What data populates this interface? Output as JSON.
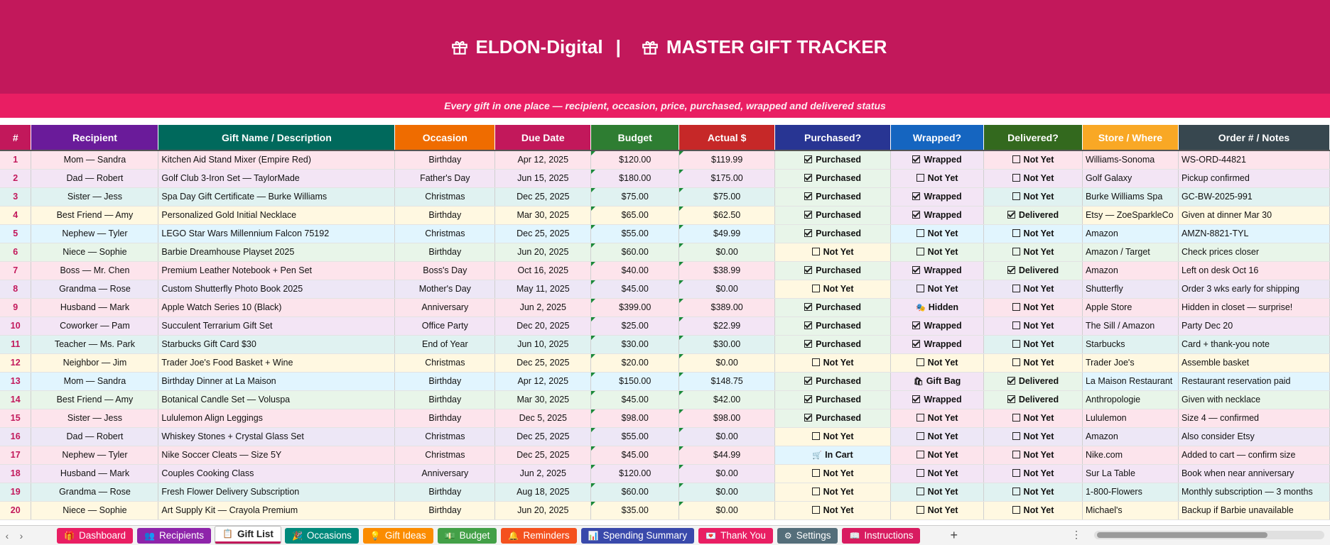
{
  "banner": {
    "brand": "ELDON-Digital",
    "sep": "|",
    "title": "MASTER GIFT TRACKER"
  },
  "subtitle": "Every gift in one place — recipient, occasion, price, purchased, wrapped and delivered status",
  "headers": [
    "#",
    "Recipient",
    "Gift Name / Description",
    "Occasion",
    "Due Date",
    "Budget",
    "Actual $",
    "Purchased?",
    "Wrapped?",
    "Delivered?",
    "Store / Where",
    "Order # / Notes"
  ],
  "header_colors": [
    "#c2185b",
    "#6a1b9a",
    "#00695c",
    "#ef6c00",
    "#c2185b",
    "#2e7d32",
    "#c62828",
    "#283593",
    "#1565c0",
    "#33691e",
    "#f9a825",
    "#37474f"
  ],
  "rows": [
    [
      "1",
      "Mom — Sandra",
      "Kitchen Aid Stand Mixer (Empire Red)",
      "Birthday",
      "Apr 12, 2025",
      "$120.00",
      "$119.99",
      "Purchased",
      "Wrapped",
      "Not Yet",
      "Williams-Sonoma",
      "WS-ORD-44821"
    ],
    [
      "2",
      "Dad — Robert",
      "Golf Club 3-Iron Set — TaylorMade",
      "Father's Day",
      "Jun 15, 2025",
      "$180.00",
      "$175.00",
      "Purchased",
      "Not Yet",
      "Not Yet",
      "Golf Galaxy",
      "Pickup confirmed"
    ],
    [
      "3",
      "Sister — Jess",
      "Spa Day Gift Certificate — Burke Williams",
      "Christmas",
      "Dec 25, 2025",
      "$75.00",
      "$75.00",
      "Purchased",
      "Wrapped",
      "Not Yet",
      "Burke Williams Spa",
      "GC-BW-2025-991"
    ],
    [
      "4",
      "Best Friend — Amy",
      "Personalized Gold Initial Necklace",
      "Birthday",
      "Mar 30, 2025",
      "$65.00",
      "$62.50",
      "Purchased",
      "Wrapped",
      "Delivered",
      "Etsy — ZoeSparkleCo",
      "Given at dinner Mar 30"
    ],
    [
      "5",
      "Nephew — Tyler",
      "LEGO Star Wars Millennium Falcon 75192",
      "Christmas",
      "Dec 25, 2025",
      "$55.00",
      "$49.99",
      "Purchased",
      "Not Yet",
      "Not Yet",
      "Amazon",
      "AMZN-8821-TYL"
    ],
    [
      "6",
      "Niece — Sophie",
      "Barbie Dreamhouse Playset 2025",
      "Birthday",
      "Jun 20, 2025",
      "$60.00",
      "$0.00",
      "Not Yet",
      "Not Yet",
      "Not Yet",
      "Amazon / Target",
      "Check prices closer"
    ],
    [
      "7",
      "Boss — Mr. Chen",
      "Premium Leather Notebook + Pen Set",
      "Boss's Day",
      "Oct 16, 2025",
      "$40.00",
      "$38.99",
      "Purchased",
      "Wrapped",
      "Delivered",
      "Amazon",
      "Left on desk Oct 16"
    ],
    [
      "8",
      "Grandma — Rose",
      "Custom Shutterfly Photo Book 2025",
      "Mother's Day",
      "May 11, 2025",
      "$45.00",
      "$0.00",
      "Not Yet",
      "Not Yet",
      "Not Yet",
      "Shutterfly",
      "Order 3 wks early for shipping"
    ],
    [
      "9",
      "Husband — Mark",
      "Apple Watch Series 10 (Black)",
      "Anniversary",
      "Jun 2, 2025",
      "$399.00",
      "$389.00",
      "Purchased",
      "Hidden",
      "Not Yet",
      "Apple Store",
      "Hidden in closet — surprise!"
    ],
    [
      "10",
      "Coworker — Pam",
      "Succulent Terrarium Gift Set",
      "Office Party",
      "Dec 20, 2025",
      "$25.00",
      "$22.99",
      "Purchased",
      "Wrapped",
      "Not Yet",
      "The Sill / Amazon",
      "Party Dec 20"
    ],
    [
      "11",
      "Teacher — Ms. Park",
      "Starbucks Gift Card $30",
      "End of Year",
      "Jun 10, 2025",
      "$30.00",
      "$30.00",
      "Purchased",
      "Wrapped",
      "Not Yet",
      "Starbucks",
      "Card + thank-you note"
    ],
    [
      "12",
      "Neighbor — Jim",
      "Trader Joe's Food Basket + Wine",
      "Christmas",
      "Dec 25, 2025",
      "$20.00",
      "$0.00",
      "Not Yet",
      "Not Yet",
      "Not Yet",
      "Trader Joe's",
      "Assemble basket"
    ],
    [
      "13",
      "Mom — Sandra",
      "Birthday Dinner at La Maison",
      "Birthday",
      "Apr 12, 2025",
      "$150.00",
      "$148.75",
      "Purchased",
      "Gift Bag",
      "Delivered",
      "La Maison Restaurant",
      "Restaurant reservation paid"
    ],
    [
      "14",
      "Best Friend — Amy",
      "Botanical Candle Set — Voluspa",
      "Birthday",
      "Mar 30, 2025",
      "$45.00",
      "$42.00",
      "Purchased",
      "Wrapped",
      "Delivered",
      "Anthropologie",
      "Given with necklace"
    ],
    [
      "15",
      "Sister — Jess",
      "Lululemon Align Leggings",
      "Birthday",
      "Dec 5, 2025",
      "$98.00",
      "$98.00",
      "Purchased",
      "Not Yet",
      "Not Yet",
      "Lululemon",
      "Size 4 — confirmed"
    ],
    [
      "16",
      "Dad — Robert",
      "Whiskey Stones + Crystal Glass Set",
      "Christmas",
      "Dec 25, 2025",
      "$55.00",
      "$0.00",
      "Not Yet",
      "Not Yet",
      "Not Yet",
      "Amazon",
      "Also consider Etsy"
    ],
    [
      "17",
      "Nephew — Tyler",
      "Nike Soccer Cleats — Size 5Y",
      "Christmas",
      "Dec 25, 2025",
      "$45.00",
      "$44.99",
      "In Cart",
      "Not Yet",
      "Not Yet",
      "Nike.com",
      "Added to cart — confirm size"
    ],
    [
      "18",
      "Husband — Mark",
      "Couples Cooking Class",
      "Anniversary",
      "Jun 2, 2025",
      "$120.00",
      "$0.00",
      "Not Yet",
      "Not Yet",
      "Not Yet",
      "Sur La Table",
      "Book when near anniversary"
    ],
    [
      "19",
      "Grandma — Rose",
      "Fresh Flower Delivery Subscription",
      "Birthday",
      "Aug 18, 2025",
      "$60.00",
      "$0.00",
      "Not Yet",
      "Not Yet",
      "Not Yet",
      "1-800-Flowers",
      "Monthly subscription — 3 months"
    ],
    [
      "20",
      "Niece — Sophie",
      "Art Supply Kit — Crayola Premium",
      "Birthday",
      "Jun 20, 2025",
      "$35.00",
      "$0.00",
      "Not Yet",
      "Not Yet",
      "Not Yet",
      "Michael's",
      "Backup if Barbie unavailable"
    ]
  ],
  "row_colors": [
    "#fde4ec",
    "#f3e5f5",
    "#e0f2f1",
    "#fff8e1",
    "#e1f5fe",
    "#e8f5e9",
    "#fde4ec",
    "#ede7f6",
    "#fce4ec",
    "#f3e5f5",
    "#e0f2f1",
    "#fff8e1",
    "#e1f5fe",
    "#e8f5e9",
    "#fde4ec",
    "#ede7f6",
    "#fce4ec",
    "#f3e5f5",
    "#e0f2f1",
    "#fff8e1"
  ],
  "status_colors": {
    "done_green": "#e8f5e9",
    "pending_yellow": "#fff8e1",
    "cart_blue": "#e1f5fe",
    "wrapped_lilac": "#f3e5f5"
  },
  "tabs": [
    {
      "label": "Dashboard",
      "icon": "gift-icon",
      "color": "#e91e63"
    },
    {
      "label": "Recipients",
      "icon": "people-icon",
      "color": "#8e24aa"
    },
    {
      "label": "Gift List",
      "icon": "list-icon",
      "color": "#ffffff",
      "active": true
    },
    {
      "label": "Occasions",
      "icon": "party-icon",
      "color": "#00897b"
    },
    {
      "label": "Gift Ideas",
      "icon": "lightbulb-icon",
      "color": "#fb8c00"
    },
    {
      "label": "Budget",
      "icon": "money-icon",
      "color": "#43a047"
    },
    {
      "label": "Reminders",
      "icon": "bell-icon",
      "color": "#f4511e"
    },
    {
      "label": "Spending Summary",
      "icon": "chart-icon",
      "color": "#3949ab"
    },
    {
      "label": "Thank You",
      "icon": "card-icon",
      "color": "#e91e63"
    },
    {
      "label": "Settings",
      "icon": "gear-icon",
      "color": "#546e7a"
    },
    {
      "label": "Instructions",
      "icon": "book-icon",
      "color": "#d81b60"
    }
  ],
  "add_sheet": "+",
  "more": "⋮"
}
